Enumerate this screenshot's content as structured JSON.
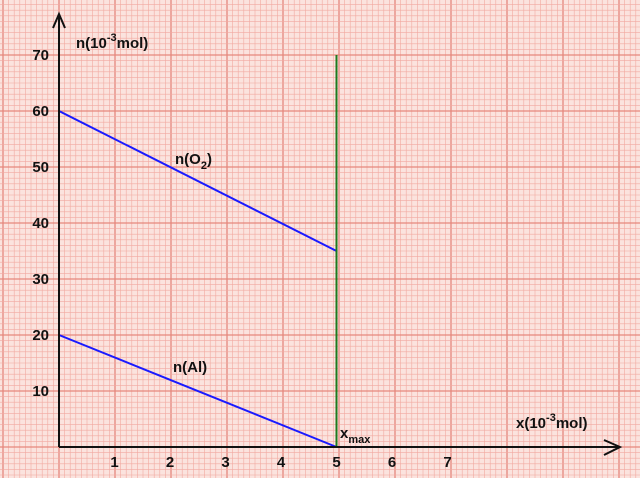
{
  "chart_data": {
    "type": "line",
    "title": "",
    "grid": true,
    "colors": {
      "background": "#fbe3de",
      "minor_grid": "#f2a9a0",
      "major_grid": "#e5877d",
      "axis": "#111111",
      "series": "#1a1aff",
      "marker": "#1e7a1e"
    },
    "ylabel": {
      "base": "n(10",
      "exp": "-3",
      "rest": "mol)"
    },
    "xlabel": {
      "base": "x(10",
      "exp": "-3",
      "rest": "mol)"
    },
    "x_ticks": [
      "1",
      "2",
      "3",
      "4",
      "5",
      "6",
      "7"
    ],
    "y_ticks": [
      "10",
      "20",
      "30",
      "40",
      "50",
      "60",
      "70"
    ],
    "xlim": [
      0,
      10
    ],
    "ylim": [
      0,
      75
    ],
    "series": [
      {
        "name_base": "n(O",
        "name_sub": "2",
        "name_close": ")",
        "x": [
          0,
          5
        ],
        "y": [
          60,
          35
        ]
      },
      {
        "name": "n(Al)",
        "x": [
          0,
          5
        ],
        "y": [
          20,
          0
        ]
      }
    ],
    "marker": {
      "x": 5,
      "y_top": 70,
      "label_base": "x",
      "label_sub": "max"
    }
  }
}
